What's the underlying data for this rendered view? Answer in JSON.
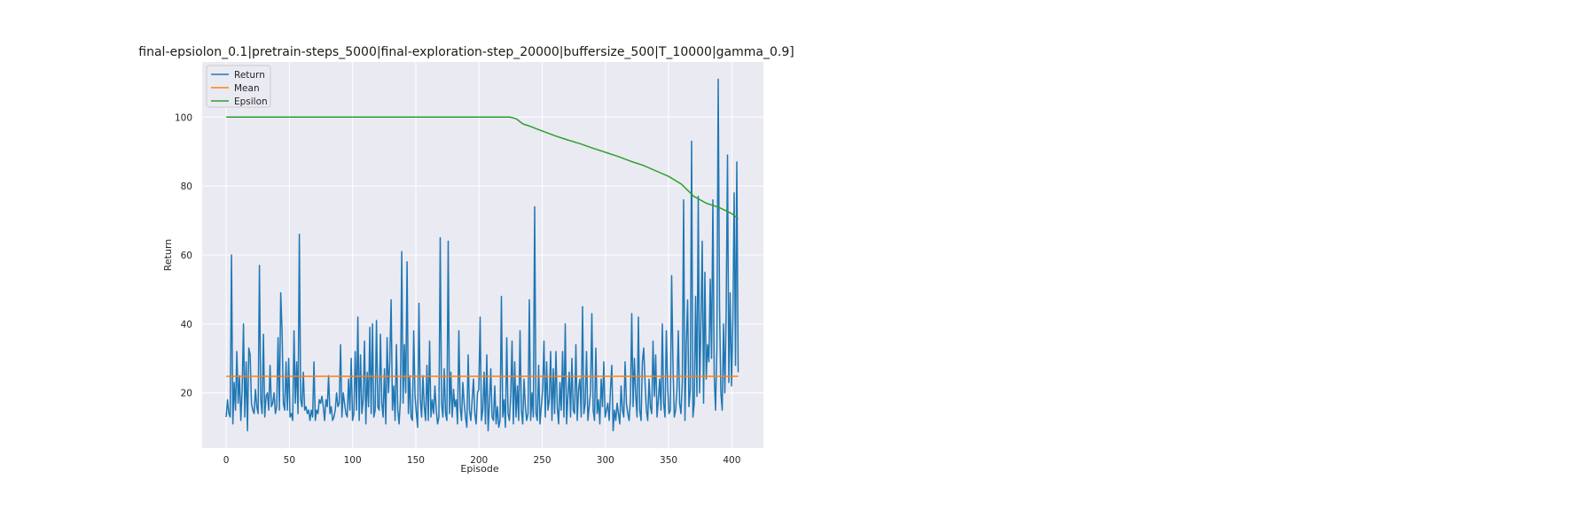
{
  "chart_data": {
    "type": "line",
    "title": "final-epsiolon_0.1|pretrain-steps_5000|final-exploration-step_20000|buffersize_500|T_10000|gamma_0.9]",
    "xlabel": "Episode",
    "ylabel": "Return",
    "xlim": [
      -19,
      425
    ],
    "ylim": [
      4,
      116
    ],
    "xticks": [
      0,
      50,
      100,
      150,
      200,
      250,
      300,
      350,
      400
    ],
    "yticks": [
      20,
      40,
      60,
      80,
      100
    ],
    "grid": true,
    "background": "#eaeaf2",
    "legend_position": "top-left",
    "series": [
      {
        "name": "Return",
        "color": "#1f77b4",
        "x_start": 0,
        "values": [
          13,
          18,
          14,
          13,
          60,
          11,
          23,
          15,
          32,
          17,
          25,
          12,
          21,
          40,
          13,
          29,
          9,
          33,
          31,
          17,
          15,
          14,
          21,
          16,
          14,
          57,
          18,
          14,
          37,
          13,
          19,
          20,
          15,
          28,
          16,
          17,
          20,
          14,
          16,
          36,
          15,
          49,
          38,
          17,
          15,
          29,
          15,
          30,
          13,
          14,
          12,
          38,
          17,
          29,
          14,
          66,
          18,
          16,
          26,
          15,
          16,
          14,
          15,
          12,
          15,
          13,
          29,
          12,
          15,
          14,
          18,
          17,
          19,
          16,
          12,
          18,
          16,
          25,
          14,
          16,
          12,
          13,
          15,
          20,
          16,
          17,
          34,
          13,
          20,
          17,
          14,
          13,
          24,
          15,
          30,
          12,
          14,
          32,
          15,
          42,
          12,
          31,
          14,
          18,
          35,
          11,
          26,
          16,
          39,
          14,
          40,
          13,
          15,
          41,
          16,
          15,
          37,
          17,
          13,
          27,
          11,
          36,
          20,
          29,
          47,
          15,
          22,
          12,
          34,
          15,
          11,
          18,
          61,
          17,
          34,
          20,
          58,
          14,
          25,
          13,
          12,
          38,
          19,
          14,
          10,
          46,
          18,
          13,
          25,
          16,
          12,
          28,
          12,
          35,
          13,
          18,
          14,
          22,
          15,
          11,
          13,
          65,
          17,
          13,
          27,
          14,
          12,
          64,
          14,
          26,
          13,
          21,
          16,
          18,
          11,
          38,
          16,
          12,
          23,
          17,
          13,
          10,
          31,
          15,
          12,
          18,
          24,
          14,
          11,
          20,
          21,
          42,
          12,
          15,
          26,
          11,
          31,
          9,
          17,
          27,
          13,
          12,
          22,
          11,
          16,
          10,
          12,
          48,
          13,
          18,
          10,
          36,
          14,
          12,
          19,
          35,
          11,
          29,
          13,
          22,
          12,
          38,
          15,
          11,
          24,
          16,
          12,
          14,
          47,
          12,
          20,
          13,
          74,
          14,
          12,
          28,
          11,
          16,
          21,
          35,
          13,
          29,
          15,
          18,
          32,
          12,
          27,
          14,
          32,
          16,
          11,
          23,
          15,
          32,
          13,
          40,
          11,
          19,
          26,
          13,
          30,
          15,
          14,
          34,
          12,
          21,
          24,
          13,
          45,
          14,
          17,
          32,
          12,
          16,
          20,
          43,
          15,
          12,
          33,
          14,
          18,
          11,
          24,
          16,
          29,
          13,
          15,
          17,
          12,
          21,
          28,
          9,
          15,
          12,
          17,
          14,
          11,
          22,
          15,
          13,
          29,
          17,
          14,
          12,
          18,
          43,
          16,
          30,
          19,
          13,
          42,
          15,
          12,
          29,
          33,
          23,
          15,
          12,
          24,
          16,
          14,
          35,
          19,
          31,
          13,
          18,
          24,
          15,
          40,
          17,
          13,
          38,
          22,
          14,
          15,
          54,
          28,
          13,
          15,
          21,
          38,
          17,
          14,
          23,
          76,
          12,
          34,
          47,
          16,
          21,
          93,
          13,
          17,
          48,
          19,
          77,
          20,
          40,
          64,
          17,
          55,
          24,
          34,
          29,
          53,
          30,
          76,
          25,
          15,
          33,
          111,
          45,
          20,
          15,
          40,
          20,
          44,
          89,
          23,
          49,
          22,
          41,
          78,
          28,
          87,
          26
        ],
        "x_end": 405
      },
      {
        "name": "Mean",
        "color": "#ff7f0e",
        "x": [
          0,
          405
        ],
        "values": [
          24.8,
          24.8
        ]
      },
      {
        "name": "Epsilon",
        "color": "#2ca02c",
        "x": [
          0,
          224,
          226,
          230,
          232,
          235,
          240,
          250,
          260,
          270,
          280,
          290,
          300,
          310,
          320,
          330,
          340,
          350,
          360,
          365,
          370,
          380,
          390,
          400,
          405
        ],
        "values": [
          100,
          100,
          99.9,
          99.4,
          98.8,
          98.0,
          97.4,
          96.0,
          94.6,
          93.4,
          92.3,
          91.0,
          89.8,
          88.6,
          87.2,
          86.0,
          84.4,
          82.8,
          80.6,
          78.8,
          77.0,
          75.0,
          73.8,
          72.0,
          70.5
        ]
      }
    ]
  }
}
